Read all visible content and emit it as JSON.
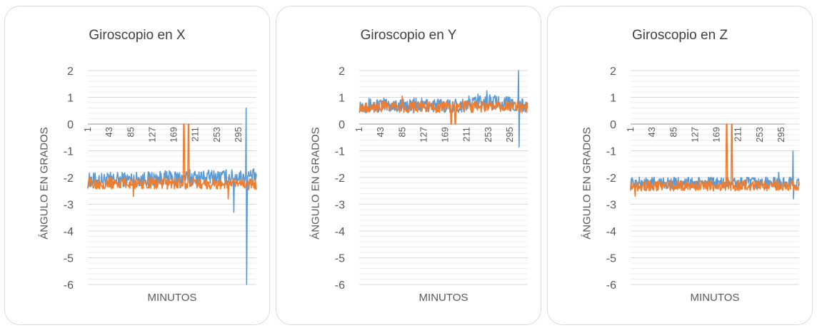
{
  "chart_data": [
    {
      "type": "line",
      "title": "Giroscopio en X",
      "xlabel": "MINUTOS",
      "ylabel": "ÁNGULO EN GRADOS",
      "ylim": [
        -6,
        2
      ],
      "yticks": [
        "2",
        "1",
        "0",
        "-1",
        "-2",
        "-3",
        "-4",
        "-5",
        "-6"
      ],
      "xticks": [
        "1",
        "43",
        "85",
        "127",
        "169",
        "211",
        "253",
        "295"
      ],
      "x_count": 330,
      "grid": true,
      "series": [
        {
          "color": "#5b9bd5",
          "baseline": [
            [
              1,
              -2.1
            ],
            [
              200,
              -2.0
            ],
            [
              330,
              -1.95
            ]
          ],
          "noise": 0.28,
          "spikes": [
            [
              200,
              -1.7
            ],
            [
              223,
              -1.8
            ],
            [
              286,
              -3.3
            ],
            [
              310,
              0.6
            ],
            [
              311,
              -6.0
            ],
            [
              312,
              -3.0
            ]
          ]
        },
        {
          "color": "#ed7d31",
          "baseline": [
            [
              1,
              -2.2
            ],
            [
              330,
              -2.25
            ]
          ],
          "noise": 0.22,
          "spikes": [
            [
              188,
              0
            ],
            [
              189,
              0
            ],
            [
              190,
              -1.8
            ],
            [
              197,
              0
            ],
            [
              198,
              0
            ],
            [
              199,
              -1.9
            ],
            [
              90,
              -2.7
            ],
            [
              275,
              -2.8
            ]
          ]
        }
      ]
    },
    {
      "type": "line",
      "title": "Giroscopio en Y",
      "xlabel": "MINUTOS",
      "ylabel": "ÁNGULO EN GRADOS",
      "ylim": [
        -6,
        2
      ],
      "yticks": [
        "2",
        "1",
        "0",
        "-1",
        "-2",
        "-3",
        "-4",
        "-5",
        "-6"
      ],
      "xticks": [
        "1",
        "43",
        "85",
        "127",
        "169",
        "211",
        "253",
        "295"
      ],
      "x_count": 330,
      "grid": true,
      "series": [
        {
          "color": "#5b9bd5",
          "baseline": [
            [
              1,
              0.7
            ],
            [
              200,
              0.7
            ],
            [
              230,
              0.85
            ],
            [
              280,
              0.8
            ],
            [
              330,
              0.65
            ]
          ],
          "noise": 0.28,
          "spikes": [
            [
              250,
              1.25
            ],
            [
              312,
              2.0
            ],
            [
              313,
              -0.85
            ],
            [
              314,
              0.5
            ]
          ]
        },
        {
          "color": "#ed7d31",
          "baseline": [
            [
              1,
              0.65
            ],
            [
              330,
              0.65
            ]
          ],
          "noise": 0.22,
          "spikes": [
            [
              180,
              0
            ],
            [
              181,
              0
            ],
            [
              182,
              0.5
            ],
            [
              188,
              0
            ],
            [
              189,
              0
            ],
            [
              190,
              0.6
            ],
            [
              85,
              1.05
            ]
          ]
        }
      ]
    },
    {
      "type": "line",
      "title": "Giroscopio en Z",
      "xlabel": "MINUTOS",
      "ylabel": "ÁNGULO EN GRADOS",
      "ylim": [
        -6,
        2
      ],
      "yticks": [
        "2",
        "1",
        "0",
        "-1",
        "-2",
        "-3",
        "-4",
        "-5",
        "-6"
      ],
      "xticks": [
        "1",
        "43",
        "85",
        "127",
        "169",
        "211",
        "253",
        "295"
      ],
      "x_count": 330,
      "grid": true,
      "series": [
        {
          "color": "#5b9bd5",
          "baseline": [
            [
              1,
              -2.2
            ],
            [
              330,
              -2.2
            ]
          ],
          "noise": 0.22,
          "spikes": [
            [
              290,
              -1.8
            ],
            [
              318,
              -1.0
            ],
            [
              319,
              -2.8
            ],
            [
              320,
              -2.3
            ]
          ]
        },
        {
          "color": "#ed7d31",
          "baseline": [
            [
              1,
              -2.3
            ],
            [
              330,
              -2.3
            ]
          ],
          "noise": 0.2,
          "spikes": [
            [
              188,
              0
            ],
            [
              189,
              0
            ],
            [
              190,
              -2.0
            ],
            [
              198,
              0
            ],
            [
              199,
              0
            ],
            [
              200,
              -2.0
            ],
            [
              10,
              -2.7
            ],
            [
              85,
              -2.5
            ]
          ]
        }
      ]
    }
  ]
}
